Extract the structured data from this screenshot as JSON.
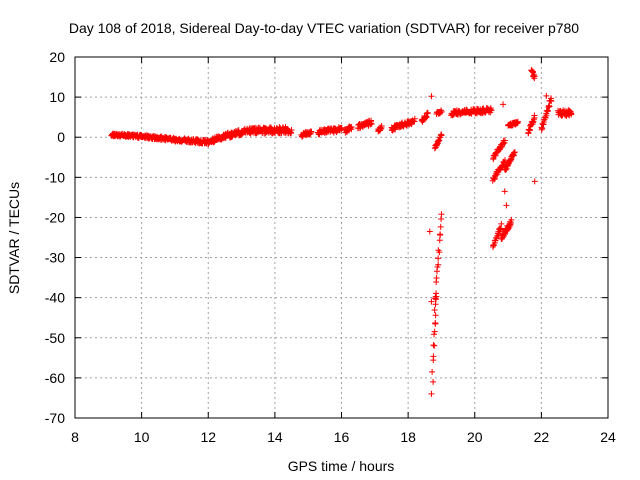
{
  "chart_data": {
    "type": "scatter",
    "title": "Day 108 of 2018, Sidereal Day-to-day VTEC variation (SDTVAR) for receiver p780",
    "xlabel": "GPS time / hours",
    "ylabel": "SDTVAR / TECUs",
    "xlim": [
      8,
      24
    ],
    "ylim": [
      -70,
      20
    ],
    "xticks": [
      "8",
      "10",
      "12",
      "14",
      "16",
      "18",
      "20",
      "22",
      "24"
    ],
    "yticks": [
      "20",
      "10",
      "0",
      "-10",
      "-20",
      "-30",
      "-40",
      "-50",
      "-60",
      "-70"
    ],
    "grid": true,
    "marker": "plus",
    "series_color": "#ff0000",
    "segments": [
      {
        "x0": 9.1,
        "x1": 10.0,
        "y0": 0.6,
        "y1": 0.2,
        "jitter": 0.4
      },
      {
        "x0": 10.0,
        "x1": 11.0,
        "y0": 0.2,
        "y1": -0.6,
        "jitter": 0.4
      },
      {
        "x0": 11.0,
        "x1": 12.0,
        "y0": -0.6,
        "y1": -1.2,
        "jitter": 0.5
      },
      {
        "x0": 12.0,
        "x1": 12.5,
        "y0": -1.2,
        "y1": 0.3,
        "jitter": 0.6
      },
      {
        "x0": 12.5,
        "x1": 13.2,
        "y0": 0.3,
        "y1": 1.6,
        "jitter": 0.7
      },
      {
        "x0": 13.2,
        "x1": 14.5,
        "y0": 1.6,
        "y1": 1.8,
        "jitter": 0.8
      },
      {
        "x0": 14.8,
        "x1": 15.1,
        "y0": 0.3,
        "y1": 1.5,
        "jitter": 0.6
      },
      {
        "x0": 15.3,
        "x1": 16.0,
        "y0": 1.2,
        "y1": 2.0,
        "jitter": 0.6
      },
      {
        "x0": 16.1,
        "x1": 16.3,
        "y0": 1.5,
        "y1": 2.5,
        "jitter": 0.5
      },
      {
        "x0": 16.5,
        "x1": 16.9,
        "y0": 2.5,
        "y1": 3.8,
        "jitter": 0.7
      },
      {
        "x0": 17.1,
        "x1": 17.2,
        "y0": 1.5,
        "y1": 2.5,
        "jitter": 0.5
      },
      {
        "x0": 17.5,
        "x1": 18.2,
        "y0": 2.2,
        "y1": 4.0,
        "jitter": 0.6
      },
      {
        "x0": 18.4,
        "x1": 18.6,
        "y0": 4.0,
        "y1": 6.0,
        "jitter": 0.6
      },
      {
        "x0": 18.8,
        "x1": 19.0,
        "y0": -2.5,
        "y1": 0.5,
        "jitter": 0.5
      },
      {
        "x0": 18.85,
        "x1": 19.0,
        "y0": 6.0,
        "y1": 6.5,
        "jitter": 0.4
      },
      {
        "x0": 19.3,
        "x1": 20.5,
        "y0": 6.0,
        "y1": 6.8,
        "jitter": 0.6
      },
      {
        "x0": 18.75,
        "x1": 18.85,
        "y0": -55.0,
        "y1": -40.0,
        "jitter": 1.2
      },
      {
        "x0": 18.8,
        "x1": 19.0,
        "y0": -42.0,
        "y1": -20.0,
        "jitter": 1.2
      },
      {
        "x0": 20.55,
        "x1": 20.8,
        "y0": -27.0,
        "y1": -22.0,
        "jitter": 0.6
      },
      {
        "x0": 20.8,
        "x1": 21.1,
        "y0": -25.0,
        "y1": -21.0,
        "jitter": 0.6
      },
      {
        "x0": 20.55,
        "x1": 20.9,
        "y0": -10.5,
        "y1": -6.0,
        "jitter": 0.5
      },
      {
        "x0": 20.9,
        "x1": 21.2,
        "y0": -8.0,
        "y1": -4.0,
        "jitter": 0.5
      },
      {
        "x0": 20.55,
        "x1": 20.9,
        "y0": -5.0,
        "y1": -1.0,
        "jitter": 0.5
      },
      {
        "x0": 21.0,
        "x1": 21.3,
        "y0": 3.0,
        "y1": 3.5,
        "jitter": 0.4
      },
      {
        "x0": 21.6,
        "x1": 21.8,
        "y0": 1.0,
        "y1": 5.0,
        "jitter": 0.6
      },
      {
        "x0": 21.7,
        "x1": 21.8,
        "y0": 16.5,
        "y1": 15.0,
        "jitter": 0.5
      },
      {
        "x0": 22.0,
        "x1": 22.3,
        "y0": 2.0,
        "y1": 9.5,
        "jitter": 0.7
      },
      {
        "x0": 22.5,
        "x1": 22.9,
        "y0": 6.0,
        "y1": 6.0,
        "jitter": 0.7
      }
    ],
    "points": [
      {
        "x": 18.7,
        "y": 10.2
      },
      {
        "x": 18.65,
        "y": -23.5
      },
      {
        "x": 18.7,
        "y": -41.0
      },
      {
        "x": 18.72,
        "y": -58.5
      },
      {
        "x": 18.75,
        "y": -61.0
      },
      {
        "x": 18.7,
        "y": -64.0
      },
      {
        "x": 20.85,
        "y": 8.2
      },
      {
        "x": 20.9,
        "y": -13.5
      },
      {
        "x": 20.95,
        "y": -17.0
      },
      {
        "x": 21.8,
        "y": -11.0
      },
      {
        "x": 22.15,
        "y": 10.3
      }
    ]
  }
}
